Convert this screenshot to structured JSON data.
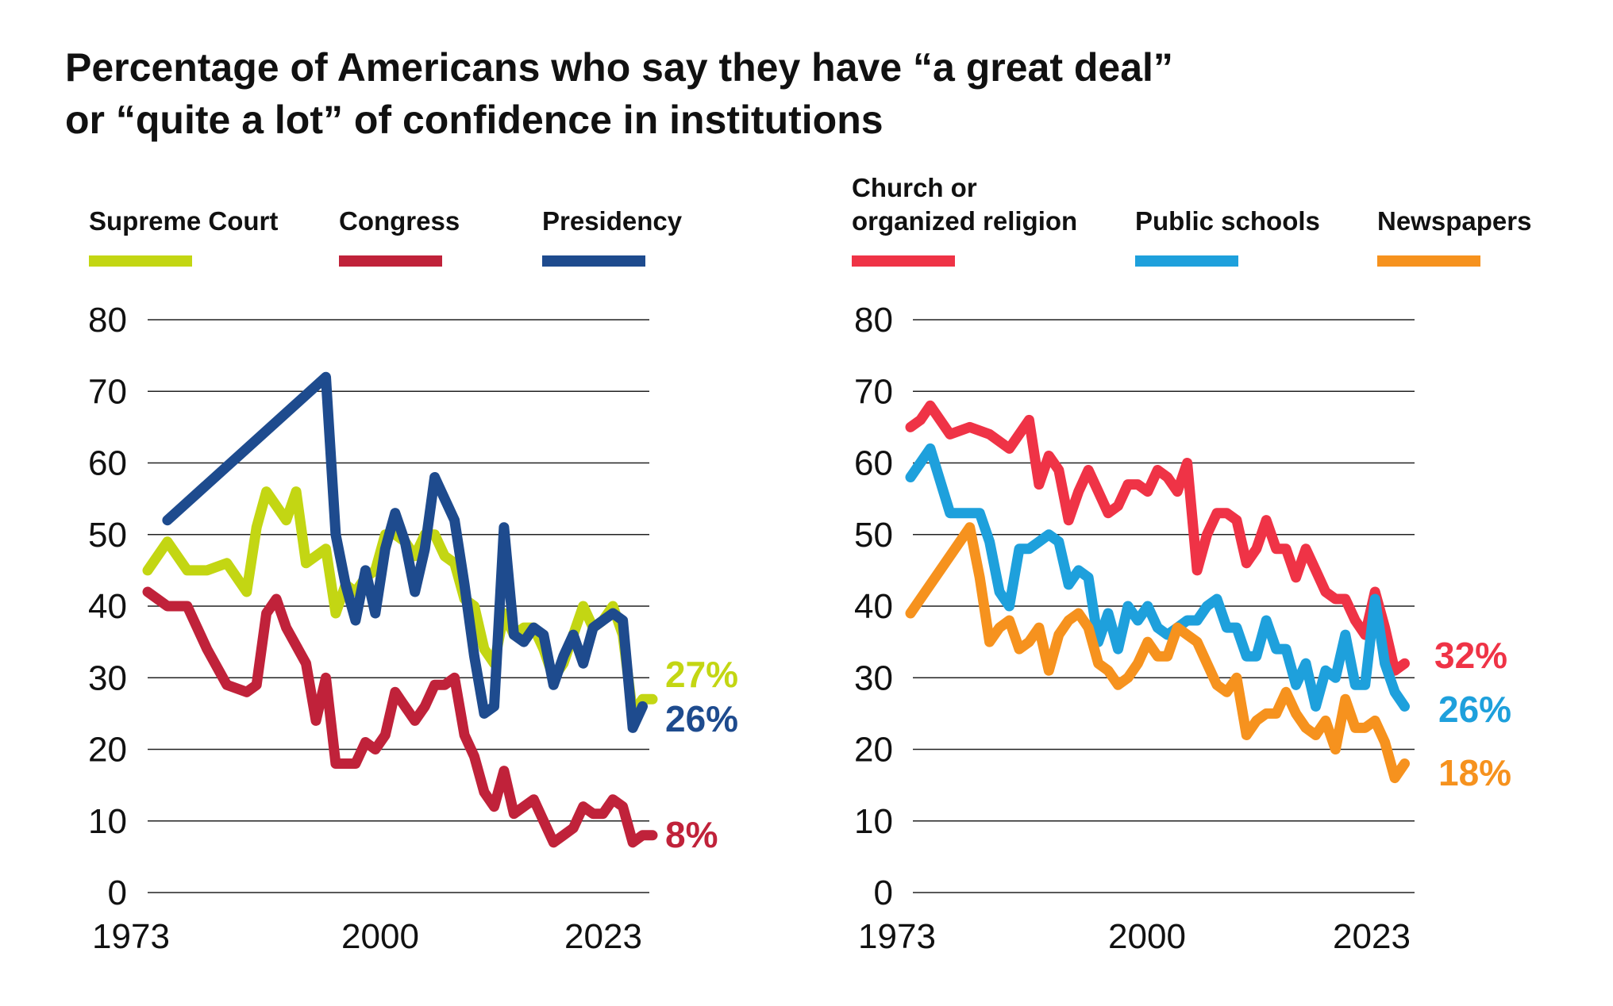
{
  "title": {
    "line1": "Percentage of Americans who say they have “a great deal”",
    "line2": "or “quite a lot” of confidence in institutions"
  },
  "chart_data": [
    {
      "type": "line",
      "ylim": [
        0,
        80
      ],
      "yticks": [
        0,
        10,
        20,
        30,
        40,
        50,
        60,
        70,
        80
      ],
      "xlim": [
        1973,
        2024
      ],
      "xticks": [
        "1973",
        "2000",
        "2023"
      ],
      "grid": true,
      "legend_position": "top",
      "series": [
        {
          "name": "Supreme Court",
          "color": "#c3d613",
          "end_label": "27%",
          "points": [
            [
              1973,
              45
            ],
            [
              1975,
              49
            ],
            [
              1977,
              45
            ],
            [
              1979,
              45
            ],
            [
              1981,
              46
            ],
            [
              1983,
              42
            ],
            [
              1984,
              51
            ],
            [
              1985,
              56
            ],
            [
              1986,
              54
            ],
            [
              1987,
              52
            ],
            [
              1988,
              56
            ],
            [
              1989,
              46
            ],
            [
              1990,
              47
            ],
            [
              1991,
              48
            ],
            [
              1992,
              39
            ],
            [
              1993,
              43
            ],
            [
              1994,
              42
            ],
            [
              1995,
              44
            ],
            [
              1996,
              45
            ],
            [
              1997,
              50
            ],
            [
              1998,
              50
            ],
            [
              1999,
              49
            ],
            [
              2000,
              47
            ],
            [
              2001,
              50
            ],
            [
              2002,
              50
            ],
            [
              2003,
              47
            ],
            [
              2004,
              46
            ],
            [
              2005,
              41
            ],
            [
              2006,
              40
            ],
            [
              2007,
              34
            ],
            [
              2008,
              32
            ],
            [
              2009,
              39
            ],
            [
              2010,
              36
            ],
            [
              2011,
              37
            ],
            [
              2012,
              37
            ],
            [
              2013,
              34
            ],
            [
              2014,
              30
            ],
            [
              2015,
              32
            ],
            [
              2016,
              36
            ],
            [
              2017,
              40
            ],
            [
              2018,
              37
            ],
            [
              2019,
              38
            ],
            [
              2020,
              40
            ],
            [
              2021,
              36
            ],
            [
              2022,
              25
            ],
            [
              2023,
              27
            ],
            [
              2024,
              27
            ]
          ]
        },
        {
          "name": "Congress",
          "color": "#c0223a",
          "end_label": "8%",
          "points": [
            [
              1973,
              42
            ],
            [
              1975,
              40
            ],
            [
              1977,
              40
            ],
            [
              1979,
              34
            ],
            [
              1981,
              29
            ],
            [
              1983,
              28
            ],
            [
              1984,
              29
            ],
            [
              1985,
              39
            ],
            [
              1986,
              41
            ],
            [
              1987,
              37
            ],
            [
              1989,
              32
            ],
            [
              1990,
              24
            ],
            [
              1991,
              30
            ],
            [
              1992,
              18
            ],
            [
              1993,
              18
            ],
            [
              1994,
              18
            ],
            [
              1995,
              21
            ],
            [
              1996,
              20
            ],
            [
              1997,
              22
            ],
            [
              1998,
              28
            ],
            [
              1999,
              26
            ],
            [
              2000,
              24
            ],
            [
              2001,
              26
            ],
            [
              2002,
              29
            ],
            [
              2003,
              29
            ],
            [
              2004,
              30
            ],
            [
              2005,
              22
            ],
            [
              2006,
              19
            ],
            [
              2007,
              14
            ],
            [
              2008,
              12
            ],
            [
              2009,
              17
            ],
            [
              2010,
              11
            ],
            [
              2011,
              12
            ],
            [
              2012,
              13
            ],
            [
              2013,
              10
            ],
            [
              2014,
              7
            ],
            [
              2015,
              8
            ],
            [
              2016,
              9
            ],
            [
              2017,
              12
            ],
            [
              2018,
              11
            ],
            [
              2019,
              11
            ],
            [
              2020,
              13
            ],
            [
              2021,
              12
            ],
            [
              2022,
              7
            ],
            [
              2023,
              8
            ],
            [
              2024,
              8
            ]
          ]
        },
        {
          "name": "Presidency",
          "color": "#1e4b8e",
          "end_label": "26%",
          "points": [
            [
              1975,
              52
            ],
            [
              1991,
              72
            ],
            [
              1992,
              50
            ],
            [
              1993,
              43
            ],
            [
              1994,
              38
            ],
            [
              1995,
              45
            ],
            [
              1996,
              39
            ],
            [
              1997,
              48
            ],
            [
              1998,
              53
            ],
            [
              1999,
              49
            ],
            [
              2000,
              42
            ],
            [
              2001,
              48
            ],
            [
              2002,
              58
            ],
            [
              2003,
              55
            ],
            [
              2004,
              52
            ],
            [
              2005,
              43
            ],
            [
              2006,
              33
            ],
            [
              2007,
              25
            ],
            [
              2008,
              26
            ],
            [
              2009,
              51
            ],
            [
              2010,
              36
            ],
            [
              2011,
              35
            ],
            [
              2012,
              37
            ],
            [
              2013,
              36
            ],
            [
              2014,
              29
            ],
            [
              2015,
              33
            ],
            [
              2016,
              36
            ],
            [
              2017,
              32
            ],
            [
              2018,
              37
            ],
            [
              2019,
              38
            ],
            [
              2020,
              39
            ],
            [
              2021,
              38
            ],
            [
              2022,
              23
            ],
            [
              2023,
              26
            ]
          ]
        }
      ]
    },
    {
      "type": "line",
      "ylim": [
        0,
        80
      ],
      "yticks": [
        0,
        10,
        20,
        30,
        40,
        50,
        60,
        70,
        80
      ],
      "xlim": [
        1973,
        2024
      ],
      "xticks": [
        "1973",
        "2000",
        "2023"
      ],
      "grid": true,
      "legend_position": "top",
      "series": [
        {
          "name": "Church or organized religion",
          "name_lines": [
            "Church or",
            "organized religion"
          ],
          "color": "#ef3346",
          "end_label": "32%",
          "points": [
            [
              1973,
              65
            ],
            [
              1974,
              66
            ],
            [
              1975,
              68
            ],
            [
              1977,
              64
            ],
            [
              1979,
              65
            ],
            [
              1981,
              64
            ],
            [
              1983,
              62
            ],
            [
              1985,
              66
            ],
            [
              1986,
              57
            ],
            [
              1987,
              61
            ],
            [
              1988,
              59
            ],
            [
              1989,
              52
            ],
            [
              1990,
              56
            ],
            [
              1991,
              59
            ],
            [
              1992,
              56
            ],
            [
              1993,
              53
            ],
            [
              1994,
              54
            ],
            [
              1995,
              57
            ],
            [
              1996,
              57
            ],
            [
              1997,
              56
            ],
            [
              1998,
              59
            ],
            [
              1999,
              58
            ],
            [
              2000,
              56
            ],
            [
              2001,
              60
            ],
            [
              2002,
              45
            ],
            [
              2003,
              50
            ],
            [
              2004,
              53
            ],
            [
              2005,
              53
            ],
            [
              2006,
              52
            ],
            [
              2007,
              46
            ],
            [
              2008,
              48
            ],
            [
              2009,
              52
            ],
            [
              2010,
              48
            ],
            [
              2011,
              48
            ],
            [
              2012,
              44
            ],
            [
              2013,
              48
            ],
            [
              2014,
              45
            ],
            [
              2015,
              42
            ],
            [
              2016,
              41
            ],
            [
              2017,
              41
            ],
            [
              2018,
              38
            ],
            [
              2019,
              36
            ],
            [
              2020,
              42
            ],
            [
              2021,
              37
            ],
            [
              2022,
              31
            ],
            [
              2023,
              32
            ]
          ]
        },
        {
          "name": "Public schools",
          "color": "#1ea0dc",
          "end_label": "26%",
          "points": [
            [
              1973,
              58
            ],
            [
              1975,
              62
            ],
            [
              1977,
              53
            ],
            [
              1979,
              53
            ],
            [
              1980,
              53
            ],
            [
              1981,
              49
            ],
            [
              1982,
              42
            ],
            [
              1983,
              40
            ],
            [
              1984,
              48
            ],
            [
              1985,
              48
            ],
            [
              1986,
              49
            ],
            [
              1987,
              50
            ],
            [
              1988,
              49
            ],
            [
              1989,
              43
            ],
            [
              1990,
              45
            ],
            [
              1991,
              44
            ],
            [
              1992,
              35
            ],
            [
              1993,
              39
            ],
            [
              1994,
              34
            ],
            [
              1995,
              40
            ],
            [
              1996,
              38
            ],
            [
              1997,
              40
            ],
            [
              1998,
              37
            ],
            [
              1999,
              36
            ],
            [
              2000,
              37
            ],
            [
              2001,
              38
            ],
            [
              2002,
              38
            ],
            [
              2003,
              40
            ],
            [
              2004,
              41
            ],
            [
              2005,
              37
            ],
            [
              2006,
              37
            ],
            [
              2007,
              33
            ],
            [
              2008,
              33
            ],
            [
              2009,
              38
            ],
            [
              2010,
              34
            ],
            [
              2011,
              34
            ],
            [
              2012,
              29
            ],
            [
              2013,
              32
            ],
            [
              2014,
              26
            ],
            [
              2015,
              31
            ],
            [
              2016,
              30
            ],
            [
              2017,
              36
            ],
            [
              2018,
              29
            ],
            [
              2019,
              29
            ],
            [
              2020,
              41
            ],
            [
              2021,
              32
            ],
            [
              2022,
              28
            ],
            [
              2023,
              26
            ]
          ]
        },
        {
          "name": "Newspapers",
          "color": "#f6921e",
          "end_label": "18%",
          "points": [
            [
              1973,
              39
            ],
            [
              1979,
              51
            ],
            [
              1980,
              44
            ],
            [
              1981,
              35
            ],
            [
              1982,
              37
            ],
            [
              1983,
              38
            ],
            [
              1984,
              34
            ],
            [
              1985,
              35
            ],
            [
              1986,
              37
            ],
            [
              1987,
              31
            ],
            [
              1988,
              36
            ],
            [
              1989,
              38
            ],
            [
              1990,
              39
            ],
            [
              1991,
              37
            ],
            [
              1992,
              32
            ],
            [
              1993,
              31
            ],
            [
              1994,
              29
            ],
            [
              1995,
              30
            ],
            [
              1996,
              32
            ],
            [
              1997,
              35
            ],
            [
              1998,
              33
            ],
            [
              1999,
              33
            ],
            [
              2000,
              37
            ],
            [
              2001,
              36
            ],
            [
              2002,
              35
            ],
            [
              2003,
              32
            ],
            [
              2004,
              29
            ],
            [
              2005,
              28
            ],
            [
              2006,
              30
            ],
            [
              2007,
              22
            ],
            [
              2008,
              24
            ],
            [
              2009,
              25
            ],
            [
              2010,
              25
            ],
            [
              2011,
              28
            ],
            [
              2012,
              25
            ],
            [
              2013,
              23
            ],
            [
              2014,
              22
            ],
            [
              2015,
              24
            ],
            [
              2016,
              20
            ],
            [
              2017,
              27
            ],
            [
              2018,
              23
            ],
            [
              2019,
              23
            ],
            [
              2020,
              24
            ],
            [
              2021,
              21
            ],
            [
              2022,
              16
            ],
            [
              2023,
              18
            ]
          ]
        }
      ]
    }
  ]
}
